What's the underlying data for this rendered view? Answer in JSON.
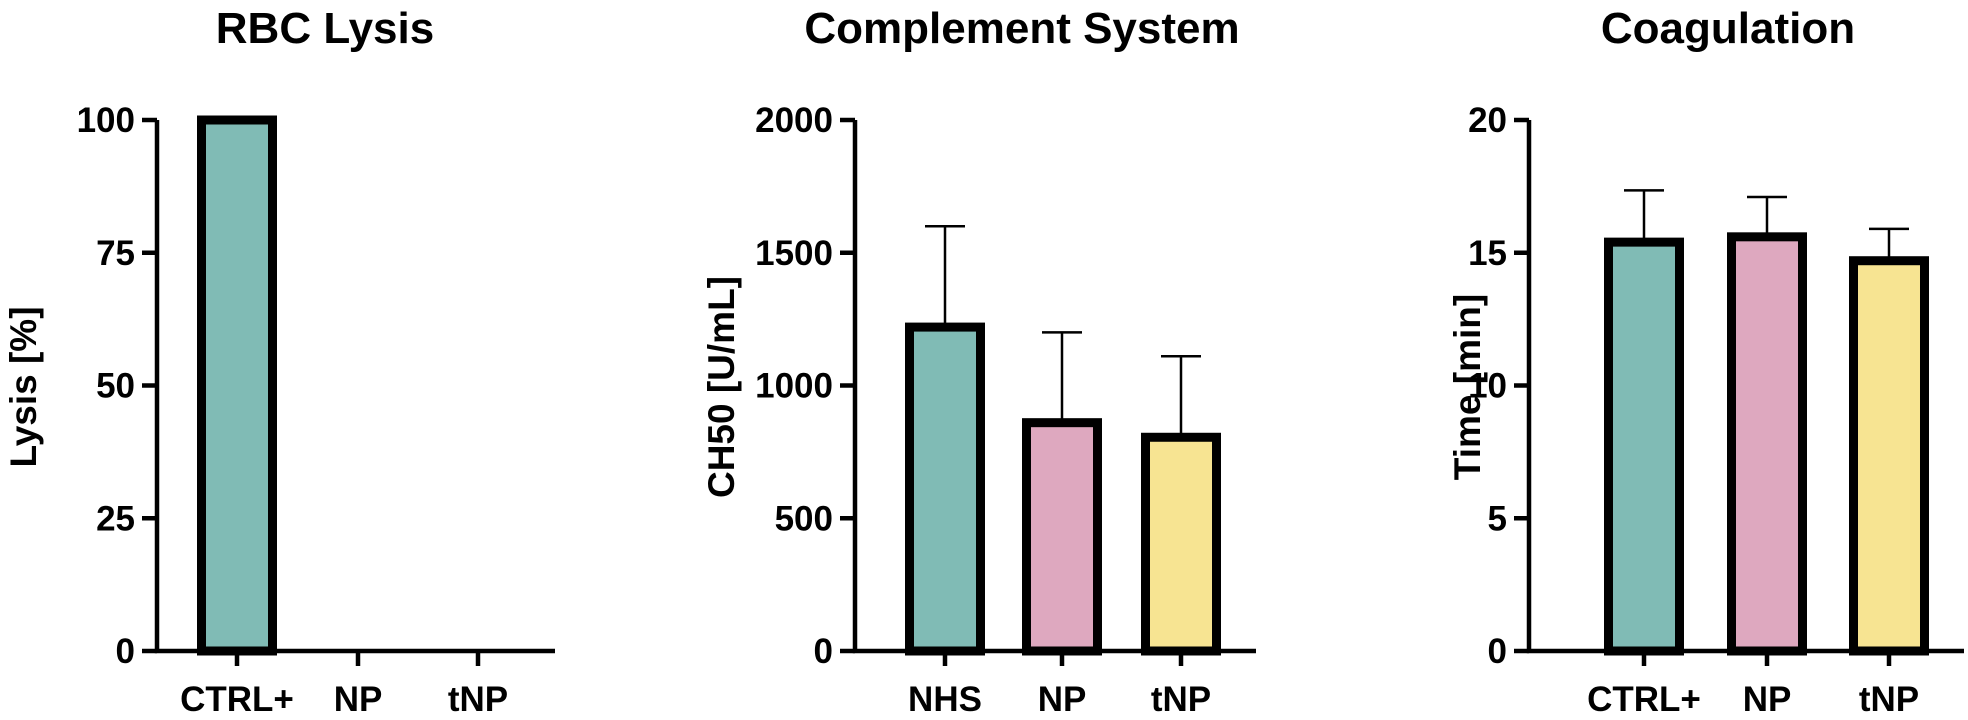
{
  "chart_data": [
    {
      "type": "bar",
      "title": "RBC Lysis",
      "ylabel": "Lysis [%]",
      "xlabel": "",
      "ylim": [
        0,
        100
      ],
      "yticks": [
        0,
        25,
        50,
        75,
        100
      ],
      "categories": [
        "CTRL+",
        "NP",
        "tNP"
      ],
      "values": [
        100,
        0,
        0
      ],
      "errors": [
        0,
        0,
        0
      ],
      "colors": [
        "#80bbb5",
        "#dea8bf",
        "#f7e492"
      ]
    },
    {
      "type": "bar",
      "title": "Complement System",
      "ylabel": "CH50 [U/mL]",
      "xlabel": "",
      "ylim": [
        0,
        2000
      ],
      "yticks": [
        0,
        500,
        1000,
        1500,
        2000
      ],
      "categories": [
        "NHS",
        "NP",
        "tNP"
      ],
      "values": [
        1220,
        860,
        805
      ],
      "errors": [
        380,
        340,
        305
      ],
      "colors": [
        "#80bbb5",
        "#dea8bf",
        "#f7e492"
      ]
    },
    {
      "type": "bar",
      "title": "Coagulation",
      "ylabel": "Time [min]",
      "xlabel": "",
      "ylim": [
        0,
        20
      ],
      "yticks": [
        0,
        5,
        10,
        15,
        20
      ],
      "categories": [
        "CTRL+",
        "NP",
        "tNP"
      ],
      "values": [
        15.4,
        15.6,
        14.7
      ],
      "errors": [
        1.95,
        1.5,
        1.2
      ],
      "colors": [
        "#80bbb5",
        "#dea8bf",
        "#f7e492"
      ]
    }
  ]
}
